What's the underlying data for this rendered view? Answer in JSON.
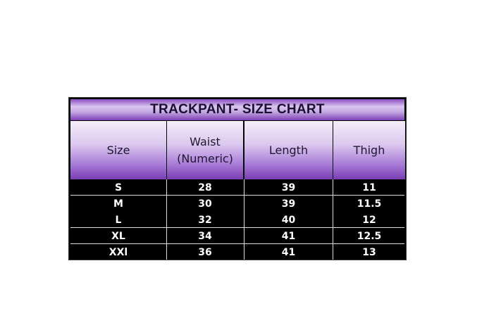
{
  "title": "TRACKPANT- SIZE CHART",
  "columns": [
    "Size",
    "Waist\n(Numeric)",
    "Length",
    "Thigh"
  ],
  "rows": [
    [
      "S",
      "28",
      "39",
      "11"
    ],
    [
      "M",
      "30",
      "39",
      "11.5"
    ],
    [
      "L",
      "32",
      "40",
      "12"
    ],
    [
      "XL",
      "34",
      "41",
      "12.5"
    ],
    [
      "XXl",
      "36",
      "41",
      "13"
    ]
  ],
  "colors": {
    "header_purple": "#7a3cb3",
    "body_bg": "#000000",
    "body_text": "#ffffff"
  }
}
